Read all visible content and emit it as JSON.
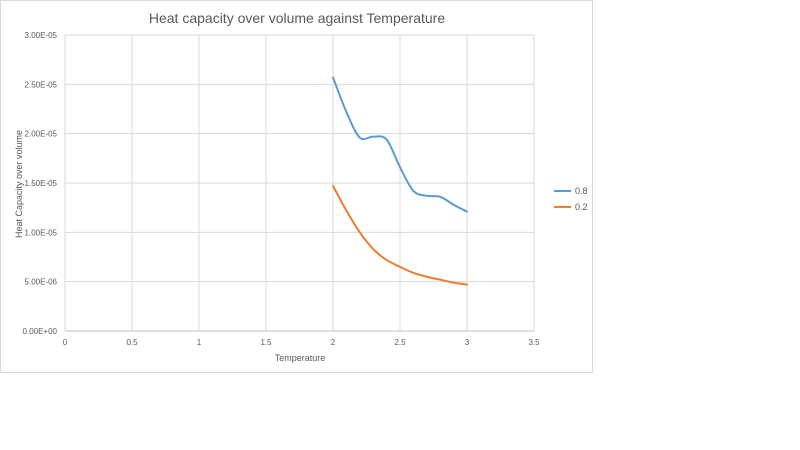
{
  "chart_data": {
    "type": "line",
    "title": "Heat capacity over volume against Temperature",
    "xlabel": "Temperature",
    "ylabel": "Heat Capacity over volume",
    "xlim": [
      0,
      3.5
    ],
    "ylim": [
      0,
      3e-05
    ],
    "x_ticks": [
      0,
      0.5,
      1,
      1.5,
      2,
      2.5,
      3,
      3.5
    ],
    "x_tick_labels": [
      "0",
      "0.5",
      "1",
      "1.5",
      "2",
      "2.5",
      "3",
      "3.5"
    ],
    "y_ticks": [
      0,
      5e-06,
      1e-05,
      1.5e-05,
      2e-05,
      2.5e-05,
      3e-05
    ],
    "y_tick_labels": [
      "0.00E+00",
      "5.00E-06",
      "1.00E-05",
      "1.50E-05",
      "2.00E-05",
      "2.50E-05",
      "3.00E-05"
    ],
    "grid": "vertical and horizontal",
    "legend_position": "right",
    "smooth": true,
    "series": [
      {
        "name": "0.8",
        "color": "#5b9bd5",
        "x": [
          2.0,
          2.1,
          2.2,
          2.3,
          2.4,
          2.5,
          2.6,
          2.7,
          2.8,
          2.9,
          3.0
        ],
        "y": [
          2.57e-05,
          2.22e-05,
          1.96e-05,
          1.97e-05,
          1.94e-05,
          1.66e-05,
          1.42e-05,
          1.37e-05,
          1.36e-05,
          1.28e-05,
          1.21e-05
        ]
      },
      {
        "name": "0.2",
        "color": "#ed7d31",
        "x": [
          2.0,
          2.1,
          2.2,
          2.3,
          2.4,
          2.5,
          2.6,
          2.7,
          2.8,
          2.9,
          3.0
        ],
        "y": [
          1.47e-05,
          1.22e-05,
          1e-05,
          8.3e-06,
          7.2e-06,
          6.5e-06,
          5.9e-06,
          5.5e-06,
          5.2e-06,
          4.9e-06,
          4.7e-06
        ]
      }
    ]
  }
}
